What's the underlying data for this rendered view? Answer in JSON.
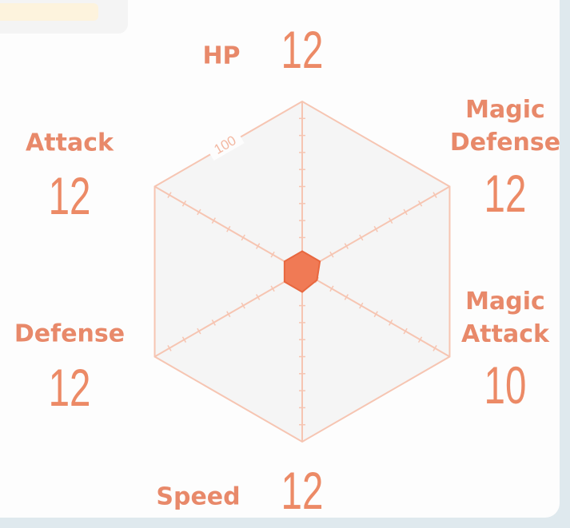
{
  "chart_data": {
    "type": "radar",
    "categories": [
      "HP",
      "Magic Defense",
      "Magic Attack",
      "Speed",
      "Defense",
      "Attack"
    ],
    "values": [
      12,
      12,
      10,
      12,
      12,
      12
    ],
    "color": "#f07a55",
    "rlim": [
      0,
      100
    ],
    "rticks": [
      100
    ]
  }
}
